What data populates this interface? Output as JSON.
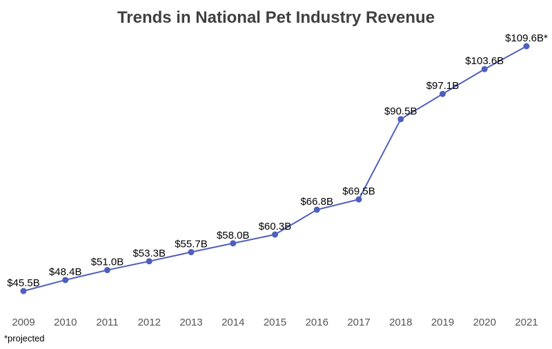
{
  "chart_data": {
    "type": "line",
    "title": "Trends in National Pet Industry Revenue",
    "xlabel": "",
    "ylabel": "",
    "categories": [
      "2009",
      "2010",
      "2011",
      "2012",
      "2013",
      "2014",
      "2015",
      "2016",
      "2017",
      "2018",
      "2019",
      "2020",
      "2021"
    ],
    "series": [
      {
        "values": [
          45.5,
          48.4,
          51.0,
          53.3,
          55.7,
          58.0,
          60.3,
          66.8,
          69.5,
          90.5,
          97.1,
          103.6,
          109.6
        ]
      }
    ],
    "data_labels": [
      "$45.5B",
      "$48.4B",
      "$51.0B",
      "$53.3B",
      "$55.7B",
      "$58.0B",
      "$60.3B",
      "$66.8B",
      "$69.5B",
      "$90.5B",
      "$97.1B",
      "$103.6B",
      "$109.6B*"
    ],
    "ylim": [
      45.5,
      109.6
    ],
    "grid": false,
    "legend": "none",
    "line_color": "#4f5fbd",
    "marker_color": "#4f5fbd",
    "footnote": "*projected"
  }
}
